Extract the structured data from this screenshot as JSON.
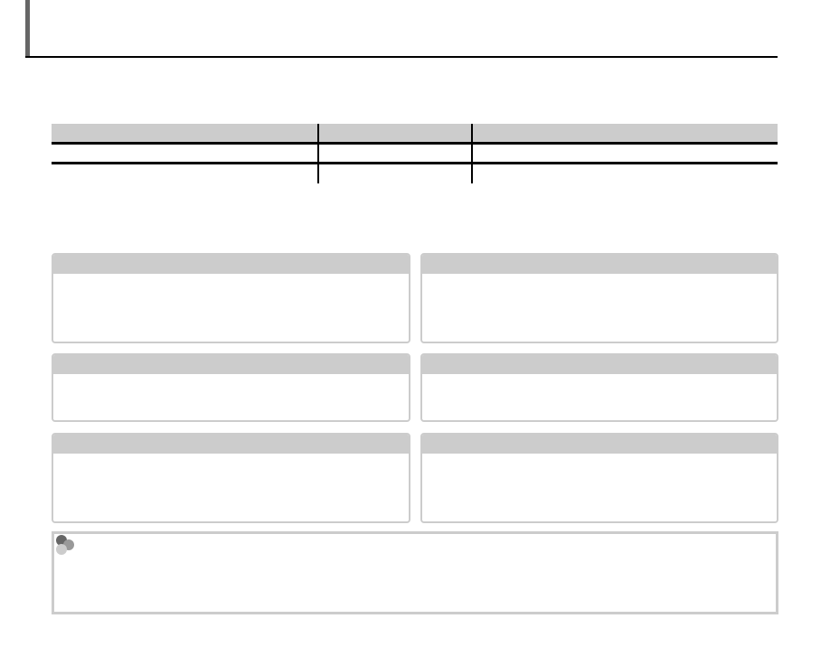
{
  "colors": {
    "header_gray": "#cccccc",
    "title_bar": "#666666",
    "rule": "#000000"
  },
  "note": {
    "icon": "hexagon-cluster-icon"
  }
}
